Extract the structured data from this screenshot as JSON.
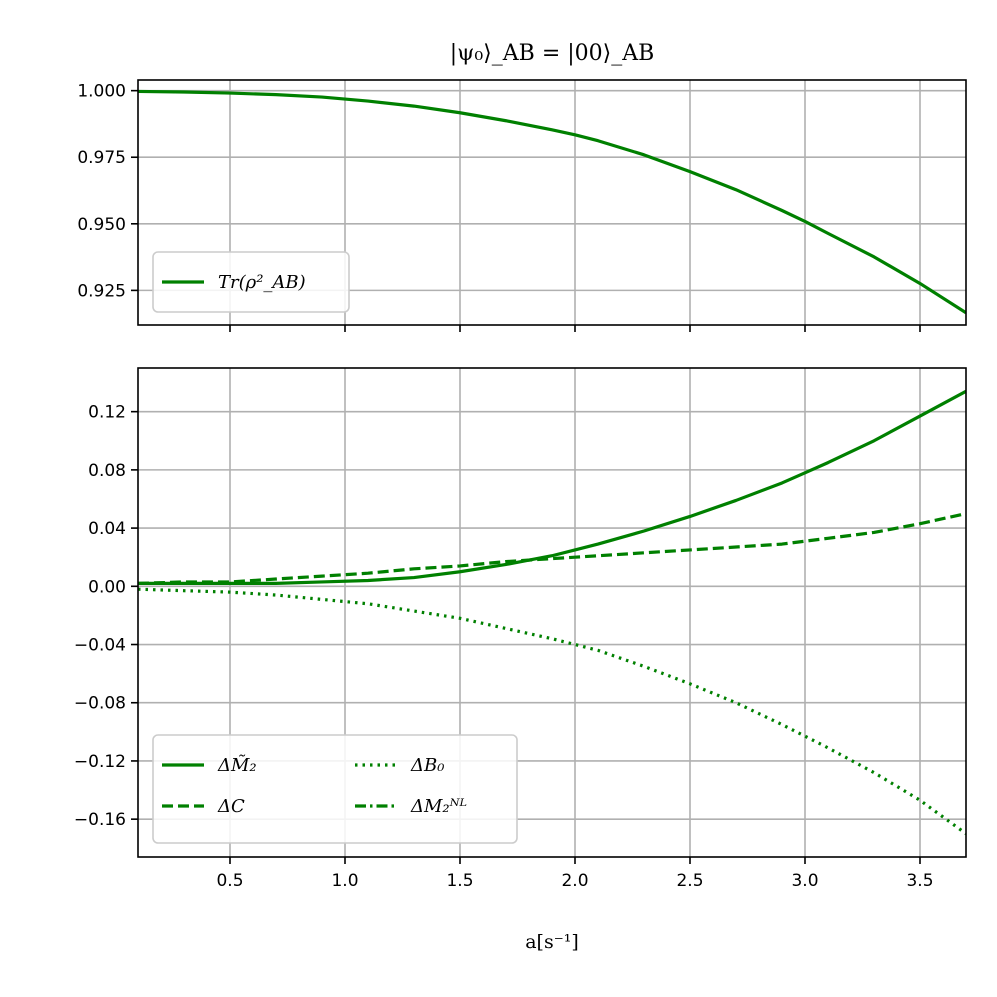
{
  "chart_data": [
    {
      "type": "line",
      "title": "|ψ₀⟩_AB = |00⟩_AB",
      "xlim": [
        0.1,
        3.7
      ],
      "ylim": [
        0.912,
        1.004
      ],
      "xticks": [
        0.5,
        1.0,
        1.5,
        2.0,
        2.5,
        3.0,
        3.5
      ],
      "yticks": [
        0.925,
        0.95,
        0.975,
        1.0
      ],
      "ytick_labels": [
        "0.925",
        "0.950",
        "0.975",
        "1.000"
      ],
      "grid": true,
      "legend": "lower-left",
      "series": [
        {
          "name": "Tr(ρ²_AB)",
          "color": "#008000",
          "style": "solid",
          "x": [
            0.1,
            0.3,
            0.5,
            0.7,
            0.9,
            1.1,
            1.3,
            1.5,
            1.7,
            1.9,
            2.0,
            2.1,
            2.3,
            2.5,
            2.7,
            2.9,
            3.0,
            3.1,
            3.3,
            3.5,
            3.7
          ],
          "y": [
            0.9997,
            0.9995,
            0.9991,
            0.9985,
            0.9976,
            0.9961,
            0.9942,
            0.9917,
            0.9887,
            0.9853,
            0.9834,
            0.9812,
            0.9759,
            0.9696,
            0.9628,
            0.955,
            0.9509,
            0.9464,
            0.9376,
            0.9276,
            0.9166
          ]
        }
      ]
    },
    {
      "type": "line",
      "xlabel": "a[s⁻¹]",
      "xlim": [
        0.1,
        3.7
      ],
      "ylim": [
        -0.186,
        0.15
      ],
      "xticks": [
        0.5,
        1.0,
        1.5,
        2.0,
        2.5,
        3.0,
        3.5
      ],
      "xtick_labels": [
        "0.5",
        "1.0",
        "1.5",
        "2.0",
        "2.5",
        "3.0",
        "3.5"
      ],
      "yticks": [
        -0.16,
        -0.12,
        -0.08,
        -0.04,
        0.0,
        0.04,
        0.08,
        0.12
      ],
      "ytick_labels": [
        "−0.16",
        "−0.12",
        "−0.08",
        "−0.04",
        "0.00",
        "0.04",
        "0.08",
        "0.12"
      ],
      "grid": true,
      "legend": "lower-left",
      "series": [
        {
          "name": "ΔM̃₂",
          "color": "#008000",
          "style": "solid",
          "x": [
            0.1,
            0.3,
            0.5,
            0.7,
            0.9,
            1.1,
            1.3,
            1.5,
            1.7,
            1.9,
            2.0,
            2.1,
            2.3,
            2.5,
            2.7,
            2.9,
            3.0,
            3.1,
            3.3,
            3.5,
            3.7
          ],
          "y": [
            0.002,
            0.002,
            0.002,
            0.002,
            0.003,
            0.004,
            0.006,
            0.01,
            0.015,
            0.021,
            0.025,
            0.029,
            0.038,
            0.048,
            0.059,
            0.071,
            0.078,
            0.085,
            0.1,
            0.117,
            0.134
          ]
        },
        {
          "name": "ΔC",
          "color": "#008000",
          "style": "dashed",
          "x": [
            0.1,
            0.3,
            0.5,
            0.7,
            0.9,
            1.1,
            1.3,
            1.5,
            1.7,
            1.9,
            2.0,
            2.1,
            2.3,
            2.5,
            2.7,
            2.9,
            3.0,
            3.1,
            3.3,
            3.5,
            3.7
          ],
          "y": [
            0.002,
            0.003,
            0.003,
            0.005,
            0.007,
            0.009,
            0.012,
            0.014,
            0.017,
            0.019,
            0.02,
            0.021,
            0.023,
            0.025,
            0.027,
            0.029,
            0.031,
            0.033,
            0.037,
            0.043,
            0.05
          ]
        },
        {
          "name": "ΔB₀",
          "color": "#008000",
          "style": "dotted",
          "x": [
            0.1,
            0.3,
            0.5,
            0.7,
            0.9,
            1.1,
            1.3,
            1.5,
            1.7,
            1.9,
            2.0,
            2.1,
            2.3,
            2.5,
            2.7,
            2.9,
            3.0,
            3.1,
            3.3,
            3.5,
            3.7
          ],
          "y": [
            -0.002,
            -0.003,
            -0.004,
            -0.006,
            -0.009,
            -0.012,
            -0.017,
            -0.022,
            -0.029,
            -0.036,
            -0.04,
            -0.044,
            -0.055,
            -0.067,
            -0.08,
            -0.095,
            -0.103,
            -0.111,
            -0.128,
            -0.147,
            -0.17
          ]
        },
        {
          "name": "ΔM₂ᴺᴸ",
          "color": "#008000",
          "style": "dashdot",
          "x": [],
          "y": []
        }
      ]
    }
  ]
}
